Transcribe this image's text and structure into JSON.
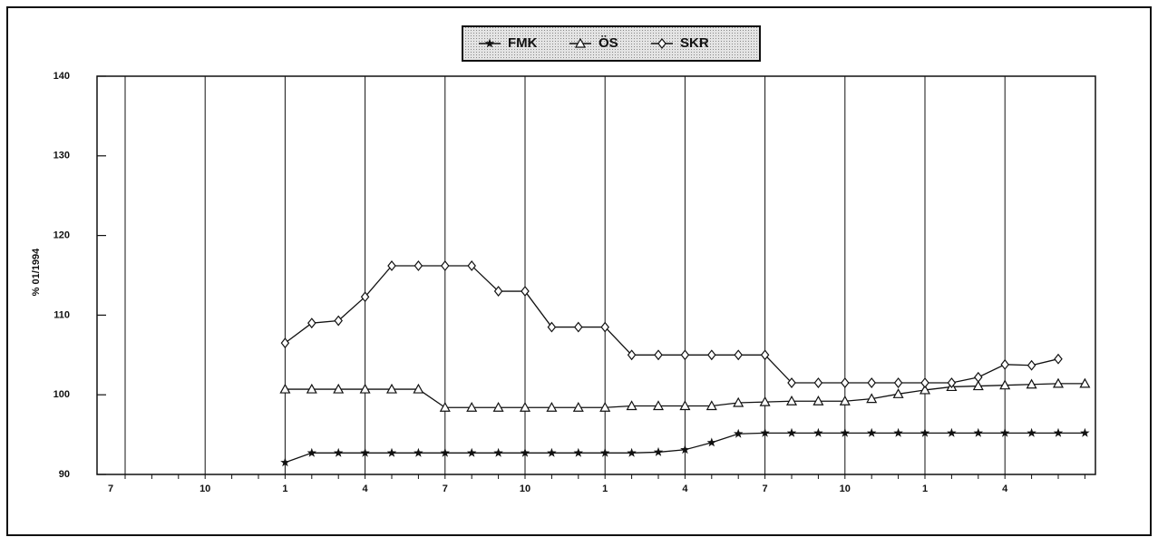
{
  "chart_data": {
    "type": "line",
    "y_label": "% 01/1994",
    "legend": "top",
    "categories": [
      "7",
      null,
      null,
      "10",
      null,
      null,
      "1",
      null,
      null,
      "4",
      null,
      null,
      "7",
      null,
      null,
      "10",
      null,
      null,
      "1",
      null,
      null,
      "4",
      null,
      null,
      "7",
      null,
      null,
      "10",
      null,
      null,
      "1",
      null,
      null,
      "4",
      null,
      null,
      null
    ],
    "ylim": [
      90,
      140
    ],
    "yticks": [
      90,
      100,
      110,
      120,
      130,
      140
    ],
    "series": [
      {
        "name": "FMK",
        "color": "#111111",
        "marker": "star",
        "values": [
          null,
          null,
          null,
          null,
          null,
          null,
          91.5,
          92.7,
          92.7,
          92.7,
          92.7,
          92.7,
          92.7,
          92.7,
          92.7,
          92.7,
          92.7,
          92.7,
          92.7,
          92.7,
          92.8,
          93.1,
          94.0,
          95.1,
          95.2,
          95.2,
          95.2,
          95.2,
          95.2,
          95.2,
          95.2,
          95.2,
          95.2,
          95.2,
          95.2,
          95.2,
          95.2
        ]
      },
      {
        "name": "ÖS",
        "color": "#111111",
        "marker": "triangle",
        "values": [
          null,
          null,
          null,
          null,
          null,
          null,
          100.7,
          100.7,
          100.7,
          100.7,
          100.7,
          100.7,
          98.4,
          98.4,
          98.4,
          98.4,
          98.4,
          98.4,
          98.4,
          98.6,
          98.6,
          98.6,
          98.6,
          99.0,
          99.1,
          99.2,
          99.2,
          99.2,
          99.5,
          100.1,
          100.6,
          101.0,
          101.1,
          101.2,
          101.3,
          101.4,
          101.4
        ]
      },
      {
        "name": "SKR",
        "color": "#111111",
        "marker": "diamond",
        "values": [
          null,
          null,
          null,
          null,
          null,
          null,
          106.5,
          109.0,
          109.3,
          112.3,
          116.2,
          116.2,
          116.2,
          116.2,
          113.0,
          113.0,
          108.5,
          108.5,
          108.5,
          105.0,
          105.0,
          105.0,
          105.0,
          105.0,
          105.0,
          101.5,
          101.5,
          101.5,
          101.5,
          101.5,
          101.5,
          101.5,
          102.2,
          103.8,
          103.7,
          104.5,
          null
        ]
      }
    ]
  }
}
